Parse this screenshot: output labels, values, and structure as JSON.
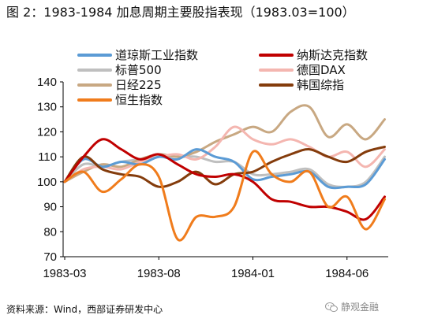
{
  "title": "图 2：1983-1984 加息周期主要股指表现（1983.03=100）",
  "source": "资料来源：Wind，西部证券研发中心",
  "watermark": "静观金融",
  "chart_data": {
    "type": "line",
    "title": "",
    "xlabel": "",
    "ylabel": "",
    "x": [
      "1983-03",
      "1983-04",
      "1983-05",
      "1983-06",
      "1983-07",
      "1983-08",
      "1983-09",
      "1983-10",
      "1983-11",
      "1983-12",
      "1984-01",
      "1984-02",
      "1984-03",
      "1984-04",
      "1984-05",
      "1984-06",
      "1984-07",
      "1984-08"
    ],
    "xticks": [
      "1983-03",
      "1983-08",
      "1984-01",
      "1984-06"
    ],
    "ylim": [
      70,
      140
    ],
    "yticks": [
      70,
      80,
      90,
      100,
      110,
      120,
      130,
      140
    ],
    "grid": false,
    "legend": "top",
    "series": [
      {
        "name": "道琼斯工业指数",
        "color": "#5b9bd5",
        "values": [
          100,
          109,
          106,
          108,
          107,
          110,
          109,
          113,
          110,
          108,
          101,
          102,
          103,
          104,
          98,
          98,
          99,
          109
        ]
      },
      {
        "name": "纳斯达克指数",
        "color": "#c00000",
        "values": [
          100,
          110,
          117,
          113,
          109,
          111,
          107,
          103,
          102,
          103,
          100,
          93,
          92,
          90,
          90,
          88,
          85,
          94
        ]
      },
      {
        "name": "标普500",
        "color": "#bfbfbf",
        "values": [
          100,
          107,
          106,
          108,
          109,
          111,
          110,
          110,
          108,
          108,
          103,
          103,
          104,
          105,
          99,
          98,
          100,
          110
        ]
      },
      {
        "name": "德国DAX",
        "color": "#f4b6b0",
        "values": [
          100,
          105,
          106,
          105,
          108,
          110,
          111,
          109,
          114,
          122,
          117,
          115,
          117,
          114,
          110,
          112,
          106,
          113
        ]
      },
      {
        "name": "日经225",
        "color": "#c8a882",
        "values": [
          100,
          104,
          107,
          106,
          109,
          111,
          110,
          112,
          116,
          119,
          122,
          120,
          128,
          130,
          118,
          123,
          117,
          125
        ]
      },
      {
        "name": "韩国综指",
        "color": "#843c0c",
        "values": [
          100,
          110,
          105,
          103,
          102,
          98,
          100,
          104,
          99,
          103,
          104,
          108,
          111,
          113,
          110,
          108,
          112,
          114
        ]
      },
      {
        "name": "恒生指数",
        "color": "#f07c1c",
        "values": [
          100,
          104,
          96,
          101,
          107,
          102,
          77,
          86,
          86,
          90,
          112,
          103,
          100,
          104,
          90,
          94,
          81,
          93
        ]
      }
    ]
  }
}
